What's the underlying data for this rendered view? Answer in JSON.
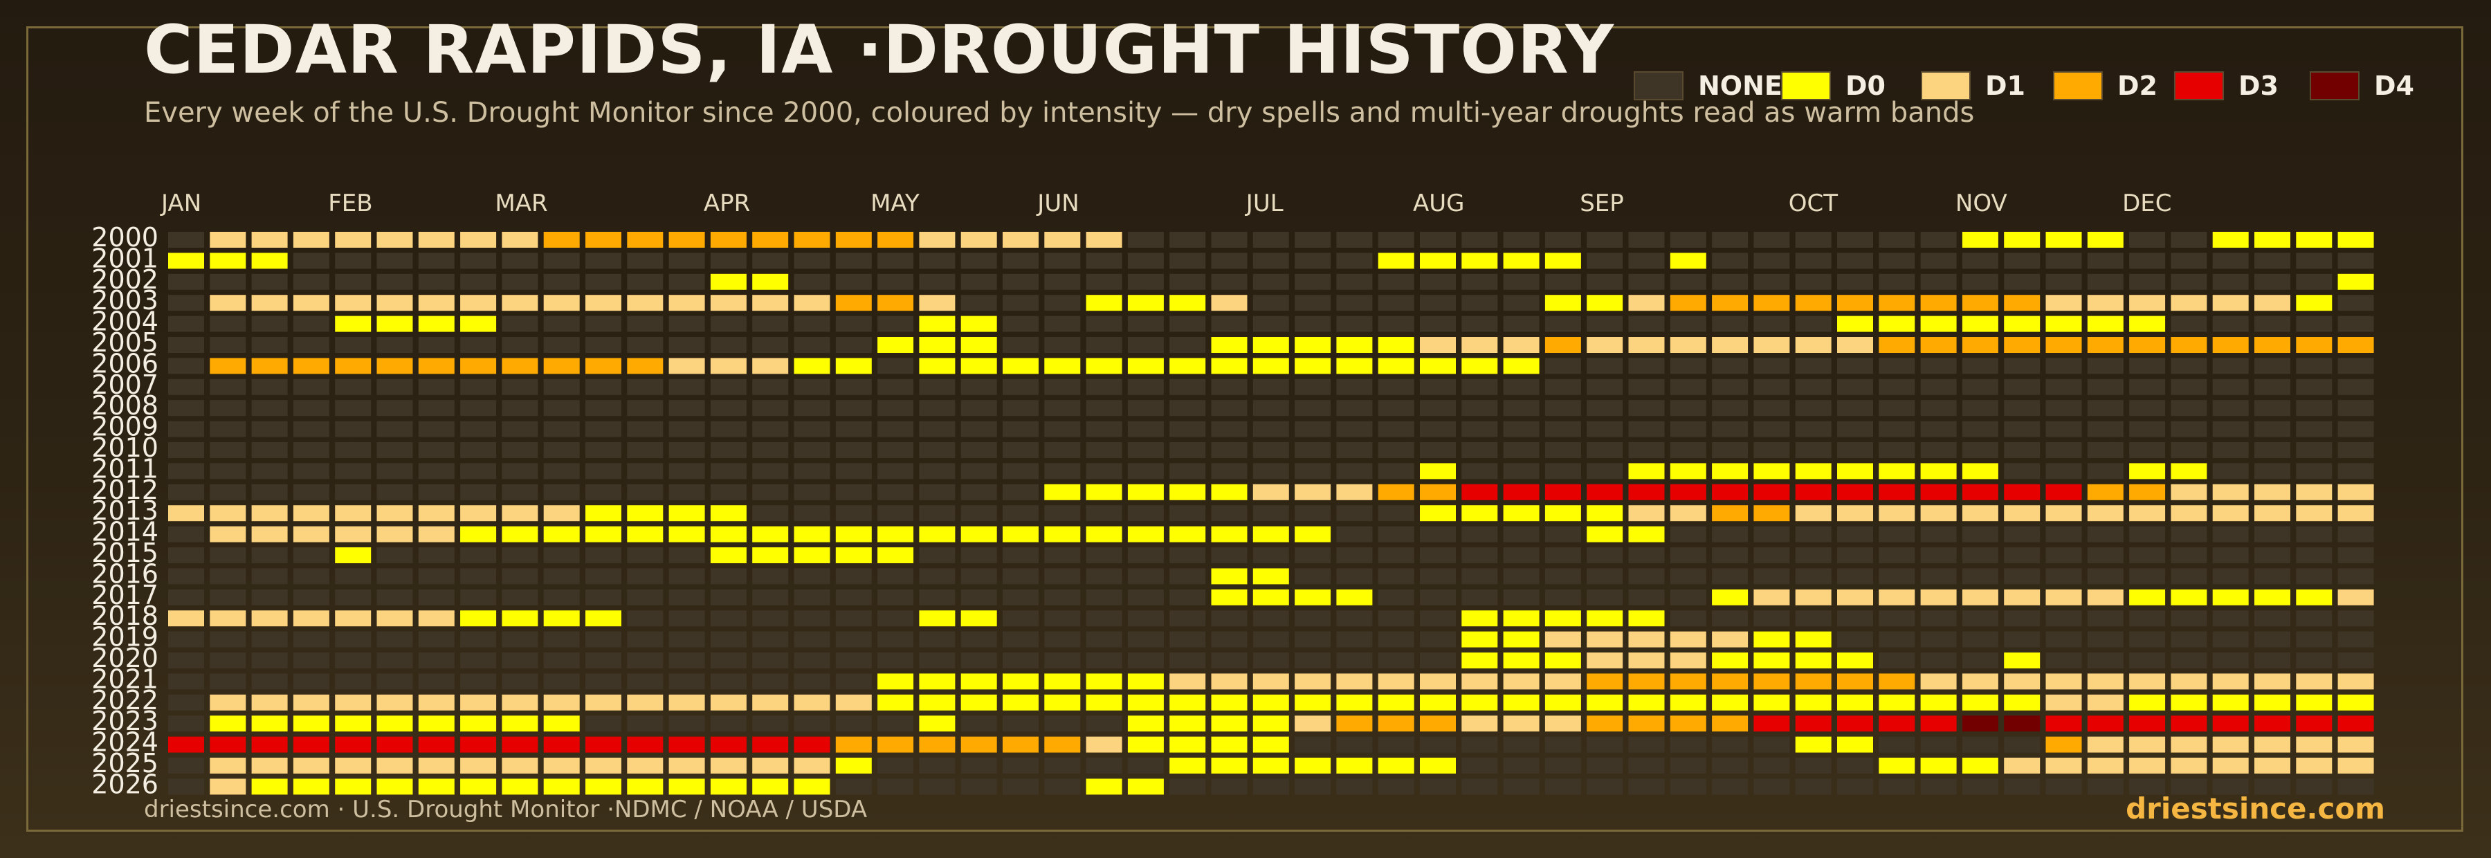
{
  "header": {
    "title": "CEDAR RAPIDS, IA ·DROUGHT HISTORY",
    "subtitle": "Every week of the U.S. Drought Monitor since 2000, coloured by intensity — dry spells and multi-year droughts read as warm bands"
  },
  "footer": {
    "source": "driestsince.com  · U.S. Drought Monitor ·NDMC / NOAA / USDA",
    "brand": "driestsince.com"
  },
  "colors": {
    "NONE": "#3f3526",
    "D0": "#ffff00",
    "D1": "#fcd37f",
    "D2": "#ffaa00",
    "D3": "#e60000",
    "D4": "#730000",
    "background": "#2a2113",
    "text": "#f4efe2",
    "accent": "#f5b642"
  },
  "chart_data": {
    "type": "heatmap",
    "title": "CEDAR RAPIDS, IA ·DROUGHT HISTORY",
    "legend_position": "top-right",
    "legend": [
      {
        "key": "NONE",
        "label": "NONE"
      },
      {
        "key": "D0",
        "label": "D0"
      },
      {
        "key": "D1",
        "label": "D1"
      },
      {
        "key": "D2",
        "label": "D2"
      },
      {
        "key": "D3",
        "label": "D3"
      },
      {
        "key": "D4",
        "label": "D4"
      }
    ],
    "months": [
      "JAN",
      "FEB",
      "MAR",
      "APR",
      "MAY",
      "JUN",
      "JUL",
      "AUG",
      "SEP",
      "OCT",
      "NOV",
      "DEC"
    ],
    "month_start_weeks": [
      0,
      4,
      8,
      13,
      17,
      21,
      26,
      30,
      34,
      39,
      43,
      47
    ],
    "weeks_per_year": 53,
    "years": [
      2000,
      2001,
      2002,
      2003,
      2004,
      2005,
      2006,
      2007,
      2008,
      2009,
      2010,
      2011,
      2012,
      2013,
      2014,
      2015,
      2016,
      2017,
      2018,
      2019,
      2020,
      2021,
      2022,
      2023,
      2024,
      2025,
      2026
    ],
    "value_legend": "0=NONE, 1=D0, 2=D1, 3=D2, 4=D3, 5=D4",
    "values": [
      [
        0,
        2,
        2,
        2,
        2,
        2,
        2,
        2,
        2,
        3,
        3,
        3,
        3,
        3,
        3,
        3,
        3,
        3,
        2,
        2,
        2,
        2,
        2,
        0,
        0,
        0,
        0,
        0,
        0,
        0,
        0,
        0,
        0,
        0,
        0,
        0,
        0,
        0,
        0,
        0,
        0,
        0,
        0,
        1,
        1,
        1,
        1,
        0,
        0,
        1,
        1,
        1,
        1
      ],
      [
        1,
        1,
        1,
        0,
        0,
        0,
        0,
        0,
        0,
        0,
        0,
        0,
        0,
        0,
        0,
        0,
        0,
        0,
        0,
        0,
        0,
        0,
        0,
        0,
        0,
        0,
        0,
        0,
        0,
        1,
        1,
        1,
        1,
        1,
        0,
        0,
        1,
        0,
        0,
        0,
        0,
        0,
        0,
        0,
        0,
        0,
        0,
        0,
        0,
        0,
        0,
        0,
        0
      ],
      [
        0,
        0,
        0,
        0,
        0,
        0,
        0,
        0,
        0,
        0,
        0,
        0,
        0,
        1,
        1,
        0,
        0,
        0,
        0,
        0,
        0,
        0,
        0,
        0,
        0,
        0,
        0,
        0,
        0,
        0,
        0,
        0,
        0,
        0,
        0,
        0,
        0,
        0,
        0,
        0,
        0,
        0,
        0,
        0,
        0,
        0,
        0,
        0,
        0,
        0,
        0,
        0,
        1
      ],
      [
        0,
        2,
        2,
        2,
        2,
        2,
        2,
        2,
        2,
        2,
        2,
        2,
        2,
        2,
        2,
        2,
        3,
        3,
        2,
        0,
        0,
        0,
        1,
        1,
        1,
        2,
        0,
        0,
        0,
        0,
        0,
        0,
        0,
        1,
        1,
        2,
        3,
        3,
        3,
        3,
        3,
        3,
        3,
        3,
        3,
        2,
        2,
        2,
        2,
        2,
        2,
        1,
        0
      ],
      [
        0,
        0,
        0,
        0,
        1,
        1,
        1,
        1,
        0,
        0,
        0,
        0,
        0,
        0,
        0,
        0,
        0,
        0,
        1,
        1,
        0,
        0,
        0,
        0,
        0,
        0,
        0,
        0,
        0,
        0,
        0,
        0,
        0,
        0,
        0,
        0,
        0,
        0,
        0,
        0,
        1,
        1,
        1,
        1,
        1,
        1,
        1,
        1,
        0,
        0,
        0,
        0,
        0
      ],
      [
        0,
        0,
        0,
        0,
        0,
        0,
        0,
        0,
        0,
        0,
        0,
        0,
        0,
        0,
        0,
        0,
        0,
        1,
        1,
        1,
        0,
        0,
        0,
        0,
        0,
        1,
        1,
        1,
        1,
        1,
        2,
        2,
        2,
        3,
        2,
        2,
        2,
        2,
        2,
        2,
        2,
        3,
        3,
        3,
        3,
        3,
        3,
        3,
        3,
        3,
        3,
        3,
        3
      ],
      [
        0,
        3,
        3,
        3,
        3,
        3,
        3,
        3,
        3,
        3,
        3,
        3,
        2,
        2,
        2,
        1,
        1,
        0,
        1,
        1,
        1,
        1,
        1,
        1,
        1,
        1,
        1,
        1,
        1,
        1,
        1,
        1,
        1,
        0,
        0,
        0,
        0,
        0,
        0,
        0,
        0,
        0,
        0,
        0,
        0,
        0,
        0,
        0,
        0,
        0,
        0,
        0,
        0
      ],
      [
        0,
        0,
        0,
        0,
        0,
        0,
        0,
        0,
        0,
        0,
        0,
        0,
        0,
        0,
        0,
        0,
        0,
        0,
        0,
        0,
        0,
        0,
        0,
        0,
        0,
        0,
        0,
        0,
        0,
        0,
        0,
        0,
        0,
        0,
        0,
        0,
        0,
        0,
        0,
        0,
        0,
        0,
        0,
        0,
        0,
        0,
        0,
        0,
        0,
        0,
        0,
        0,
        0
      ],
      [
        0,
        0,
        0,
        0,
        0,
        0,
        0,
        0,
        0,
        0,
        0,
        0,
        0,
        0,
        0,
        0,
        0,
        0,
        0,
        0,
        0,
        0,
        0,
        0,
        0,
        0,
        0,
        0,
        0,
        0,
        0,
        0,
        0,
        0,
        0,
        0,
        0,
        0,
        0,
        0,
        0,
        0,
        0,
        0,
        0,
        0,
        0,
        0,
        0,
        0,
        0,
        0,
        0
      ],
      [
        0,
        0,
        0,
        0,
        0,
        0,
        0,
        0,
        0,
        0,
        0,
        0,
        0,
        0,
        0,
        0,
        0,
        0,
        0,
        0,
        0,
        0,
        0,
        0,
        0,
        0,
        0,
        0,
        0,
        0,
        0,
        0,
        0,
        0,
        0,
        0,
        0,
        0,
        0,
        0,
        0,
        0,
        0,
        0,
        0,
        0,
        0,
        0,
        0,
        0,
        0,
        0,
        0
      ],
      [
        0,
        0,
        0,
        0,
        0,
        0,
        0,
        0,
        0,
        0,
        0,
        0,
        0,
        0,
        0,
        0,
        0,
        0,
        0,
        0,
        0,
        0,
        0,
        0,
        0,
        0,
        0,
        0,
        0,
        0,
        0,
        0,
        0,
        0,
        0,
        0,
        0,
        0,
        0,
        0,
        0,
        0,
        0,
        0,
        0,
        0,
        0,
        0,
        0,
        0,
        0,
        0,
        0
      ],
      [
        0,
        0,
        0,
        0,
        0,
        0,
        0,
        0,
        0,
        0,
        0,
        0,
        0,
        0,
        0,
        0,
        0,
        0,
        0,
        0,
        0,
        0,
        0,
        0,
        0,
        0,
        0,
        0,
        0,
        0,
        1,
        0,
        0,
        0,
        0,
        1,
        1,
        1,
        1,
        1,
        1,
        1,
        1,
        1,
        0,
        0,
        0,
        1,
        1,
        0,
        0,
        0,
        0
      ],
      [
        0,
        0,
        0,
        0,
        0,
        0,
        0,
        0,
        0,
        0,
        0,
        0,
        0,
        0,
        0,
        0,
        0,
        0,
        0,
        0,
        0,
        1,
        1,
        1,
        1,
        1,
        2,
        2,
        2,
        3,
        3,
        4,
        4,
        4,
        4,
        4,
        4,
        4,
        4,
        4,
        4,
        4,
        4,
        4,
        4,
        4,
        3,
        3,
        2,
        2,
        2,
        2,
        2
      ],
      [
        2,
        2,
        2,
        2,
        2,
        2,
        2,
        2,
        2,
        2,
        1,
        1,
        1,
        1,
        0,
        0,
        0,
        0,
        0,
        0,
        0,
        0,
        0,
        0,
        0,
        0,
        0,
        0,
        0,
        0,
        1,
        1,
        1,
        1,
        1,
        2,
        2,
        3,
        3,
        2,
        2,
        2,
        2,
        2,
        2,
        2,
        2,
        2,
        2,
        2,
        2,
        2,
        2
      ],
      [
        0,
        2,
        2,
        2,
        2,
        2,
        2,
        1,
        1,
        1,
        1,
        1,
        1,
        1,
        1,
        1,
        1,
        1,
        1,
        1,
        1,
        1,
        1,
        1,
        1,
        1,
        1,
        1,
        0,
        0,
        0,
        0,
        0,
        0,
        1,
        1,
        0,
        0,
        0,
        0,
        0,
        0,
        0,
        0,
        0,
        0,
        0,
        0,
        0,
        0,
        0,
        0,
        0
      ],
      [
        0,
        0,
        0,
        0,
        1,
        0,
        0,
        0,
        0,
        0,
        0,
        0,
        0,
        1,
        1,
        1,
        1,
        1,
        0,
        0,
        0,
        0,
        0,
        0,
        0,
        0,
        0,
        0,
        0,
        0,
        0,
        0,
        0,
        0,
        0,
        0,
        0,
        0,
        0,
        0,
        0,
        0,
        0,
        0,
        0,
        0,
        0,
        0,
        0,
        0,
        0,
        0,
        0
      ],
      [
        0,
        0,
        0,
        0,
        0,
        0,
        0,
        0,
        0,
        0,
        0,
        0,
        0,
        0,
        0,
        0,
        0,
        0,
        0,
        0,
        0,
        0,
        0,
        0,
        0,
        1,
        1,
        0,
        0,
        0,
        0,
        0,
        0,
        0,
        0,
        0,
        0,
        0,
        0,
        0,
        0,
        0,
        0,
        0,
        0,
        0,
        0,
        0,
        0,
        0,
        0,
        0,
        0
      ],
      [
        0,
        0,
        0,
        0,
        0,
        0,
        0,
        0,
        0,
        0,
        0,
        0,
        0,
        0,
        0,
        0,
        0,
        0,
        0,
        0,
        0,
        0,
        0,
        0,
        0,
        1,
        1,
        1,
        1,
        0,
        0,
        0,
        0,
        0,
        0,
        0,
        0,
        1,
        2,
        2,
        2,
        2,
        2,
        2,
        2,
        2,
        2,
        1,
        1,
        1,
        1,
        1,
        2
      ],
      [
        2,
        2,
        2,
        2,
        2,
        2,
        2,
        1,
        1,
        1,
        1,
        0,
        0,
        0,
        0,
        0,
        0,
        0,
        1,
        1,
        0,
        0,
        0,
        0,
        0,
        0,
        0,
        0,
        0,
        0,
        0,
        1,
        1,
        1,
        1,
        1,
        0,
        0,
        0,
        0,
        0,
        0,
        0,
        0,
        0,
        0,
        0,
        0,
        0,
        0,
        0,
        0,
        0
      ],
      [
        0,
        0,
        0,
        0,
        0,
        0,
        0,
        0,
        0,
        0,
        0,
        0,
        0,
        0,
        0,
        0,
        0,
        0,
        0,
        0,
        0,
        0,
        0,
        0,
        0,
        0,
        0,
        0,
        0,
        0,
        0,
        1,
        1,
        2,
        2,
        2,
        2,
        2,
        1,
        1,
        0,
        0,
        0,
        0,
        0,
        0,
        0,
        0,
        0,
        0,
        0,
        0,
        0
      ],
      [
        0,
        0,
        0,
        0,
        0,
        0,
        0,
        0,
        0,
        0,
        0,
        0,
        0,
        0,
        0,
        0,
        0,
        0,
        0,
        0,
        0,
        0,
        0,
        0,
        0,
        0,
        0,
        0,
        0,
        0,
        0,
        1,
        1,
        1,
        2,
        2,
        2,
        1,
        1,
        1,
        1,
        0,
        0,
        0,
        1,
        0,
        0,
        0,
        0,
        0,
        0,
        0,
        0
      ],
      [
        0,
        0,
        0,
        0,
        0,
        0,
        0,
        0,
        0,
        0,
        0,
        0,
        0,
        0,
        0,
        0,
        0,
        1,
        1,
        1,
        1,
        1,
        1,
        1,
        2,
        2,
        2,
        2,
        2,
        2,
        2,
        2,
        2,
        2,
        3,
        3,
        3,
        3,
        3,
        3,
        3,
        3,
        2,
        2,
        2,
        2,
        2,
        2,
        2,
        2,
        2,
        2,
        2
      ],
      [
        0,
        2,
        2,
        2,
        2,
        2,
        2,
        2,
        2,
        2,
        2,
        2,
        2,
        2,
        2,
        2,
        2,
        1,
        1,
        1,
        1,
        1,
        1,
        1,
        1,
        1,
        1,
        1,
        1,
        1,
        1,
        1,
        1,
        1,
        1,
        1,
        1,
        1,
        1,
        1,
        1,
        1,
        1,
        1,
        1,
        2,
        2,
        1,
        1,
        1,
        1,
        1,
        1
      ],
      [
        0,
        1,
        1,
        1,
        1,
        1,
        1,
        1,
        1,
        1,
        0,
        0,
        0,
        0,
        0,
        0,
        0,
        0,
        1,
        0,
        0,
        0,
        0,
        1,
        1,
        1,
        1,
        2,
        3,
        3,
        3,
        2,
        2,
        2,
        3,
        3,
        3,
        3,
        4,
        4,
        4,
        4,
        4,
        5,
        5,
        4,
        4,
        4,
        4,
        4,
        4,
        4,
        4
      ],
      [
        4,
        4,
        4,
        4,
        4,
        4,
        4,
        4,
        4,
        4,
        4,
        4,
        4,
        4,
        4,
        4,
        3,
        3,
        3,
        3,
        3,
        3,
        2,
        1,
        1,
        1,
        1,
        0,
        0,
        0,
        0,
        0,
        0,
        0,
        0,
        0,
        0,
        0,
        0,
        1,
        1,
        0,
        0,
        0,
        0,
        3,
        2,
        2,
        2,
        2,
        2,
        2,
        2
      ],
      [
        0,
        2,
        2,
        2,
        2,
        2,
        2,
        2,
        2,
        2,
        2,
        2,
        2,
        2,
        2,
        2,
        1,
        0,
        0,
        0,
        0,
        0,
        0,
        0,
        1,
        1,
        1,
        1,
        1,
        1,
        1,
        0,
        0,
        0,
        0,
        0,
        0,
        0,
        0,
        0,
        0,
        1,
        1,
        1,
        2,
        2,
        2,
        2,
        2,
        2,
        2,
        2,
        2
      ],
      [
        0,
        2,
        1,
        1,
        1,
        1,
        1,
        1,
        1,
        1,
        1,
        1,
        1,
        1,
        1,
        1,
        0,
        0,
        0,
        0,
        0,
        0,
        1,
        1,
        0,
        0,
        0,
        0,
        0,
        0,
        0,
        0,
        0,
        0,
        0,
        0,
        0,
        0,
        0,
        0,
        0,
        0,
        0,
        0,
        0,
        0,
        0,
        0,
        0,
        0,
        0,
        0,
        0
      ]
    ]
  }
}
